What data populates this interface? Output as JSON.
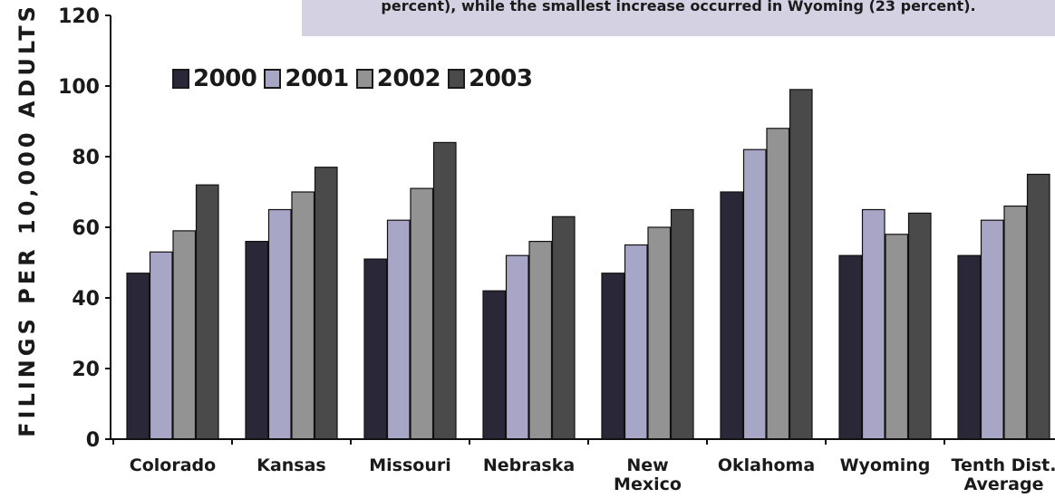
{
  "note": {
    "text": "percent), while the smallest increase occurred in Wyoming (23 percent)."
  },
  "colors": {
    "s2000": "#2a2838",
    "s2001": "#a8a6c6",
    "s2002": "#939393",
    "s2003": "#4a4a4a",
    "note_bg": "#d4d2e2"
  },
  "chart_data": {
    "type": "bar",
    "ylabel": "FILINGS PER 10,000 ADULTS",
    "xlabel": "",
    "ylim": [
      0,
      120
    ],
    "yticks": [
      0,
      20,
      40,
      60,
      80,
      100,
      120
    ],
    "grid": false,
    "legend_position": "top-left",
    "categories": [
      [
        "Colorado"
      ],
      [
        "Kansas"
      ],
      [
        "Missouri"
      ],
      [
        "Nebraska"
      ],
      [
        "New",
        "Mexico"
      ],
      [
        "Oklahoma"
      ],
      [
        "Wyoming"
      ],
      [
        "Tenth Dist.",
        "Average"
      ]
    ],
    "series": [
      {
        "name": "2000",
        "values": [
          47,
          56,
          51,
          42,
          47,
          70,
          52,
          52
        ]
      },
      {
        "name": "2001",
        "values": [
          53,
          65,
          62,
          52,
          55,
          82,
          65,
          62
        ]
      },
      {
        "name": "2002",
        "values": [
          59,
          70,
          71,
          56,
          60,
          88,
          58,
          66
        ]
      },
      {
        "name": "2003",
        "values": [
          72,
          77,
          84,
          63,
          65,
          99,
          64,
          75
        ]
      }
    ]
  }
}
